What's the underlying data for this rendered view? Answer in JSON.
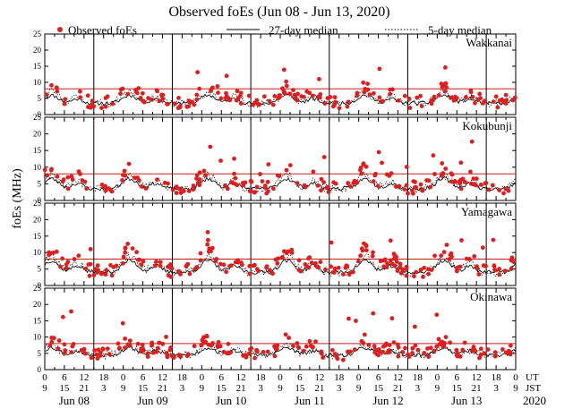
{
  "chart_data": {
    "type": "scatter",
    "title": "Observed foEs (Jun 08 - Jun 13, 2020)",
    "ylabel": "foEs (MHz)",
    "ylim": [
      0,
      25
    ],
    "yticks": [
      0,
      5,
      10,
      15,
      20,
      25
    ],
    "reference_line_mhz": 8,
    "legend": {
      "placement": "top",
      "observed_label": "Observed foEs",
      "median27_label": "27-day median",
      "median5_label": "5-day median"
    },
    "x_axis": {
      "ut_label": "UT",
      "jst_label": "JST",
      "year_label": "2020",
      "ut_ticks": [
        "0",
        "6",
        "12",
        "18",
        "0",
        "6",
        "12",
        "18",
        "0",
        "6",
        "12",
        "18",
        "0",
        "6",
        "12",
        "18",
        "0",
        "6",
        "12",
        "18",
        "0",
        "6",
        "12",
        "18",
        "0"
      ],
      "jst_ticks": [
        "9",
        "15",
        "21",
        "3",
        "9",
        "15",
        "21",
        "3",
        "9",
        "15",
        "21",
        "3",
        "9",
        "15",
        "21",
        "3",
        "9",
        "15",
        "21",
        "3",
        "9",
        "15",
        "21",
        "3",
        "9"
      ],
      "day_labels": [
        "Jun 08",
        "Jun 09",
        "Jun 10",
        "Jun 11",
        "Jun 12",
        "Jun 13"
      ],
      "day_label_hours": [
        9,
        33,
        57,
        81,
        105,
        129
      ],
      "range_hours_ut": [
        0,
        144
      ],
      "day_boundaries_jst_hours": [
        15,
        39,
        63,
        87,
        111,
        135
      ]
    },
    "stations": [
      {
        "name": "Wakkanai",
        "base": 3.5,
        "amp": 4.5,
        "scatter_points": 180,
        "seed": 11
      },
      {
        "name": "Kokubunji",
        "base": 3.5,
        "amp": 5.5,
        "scatter_points": 180,
        "seed": 23
      },
      {
        "name": "Yamagawa",
        "base": 4.0,
        "amp": 6.5,
        "scatter_points": 200,
        "seed": 37
      },
      {
        "name": "Okinawa",
        "base": 4.5,
        "amp": 4.0,
        "scatter_points": 210,
        "seed": 53
      }
    ],
    "colors": {
      "observed": "#e01e1e",
      "reference": "#c81e1e",
      "median": "#000000"
    }
  }
}
